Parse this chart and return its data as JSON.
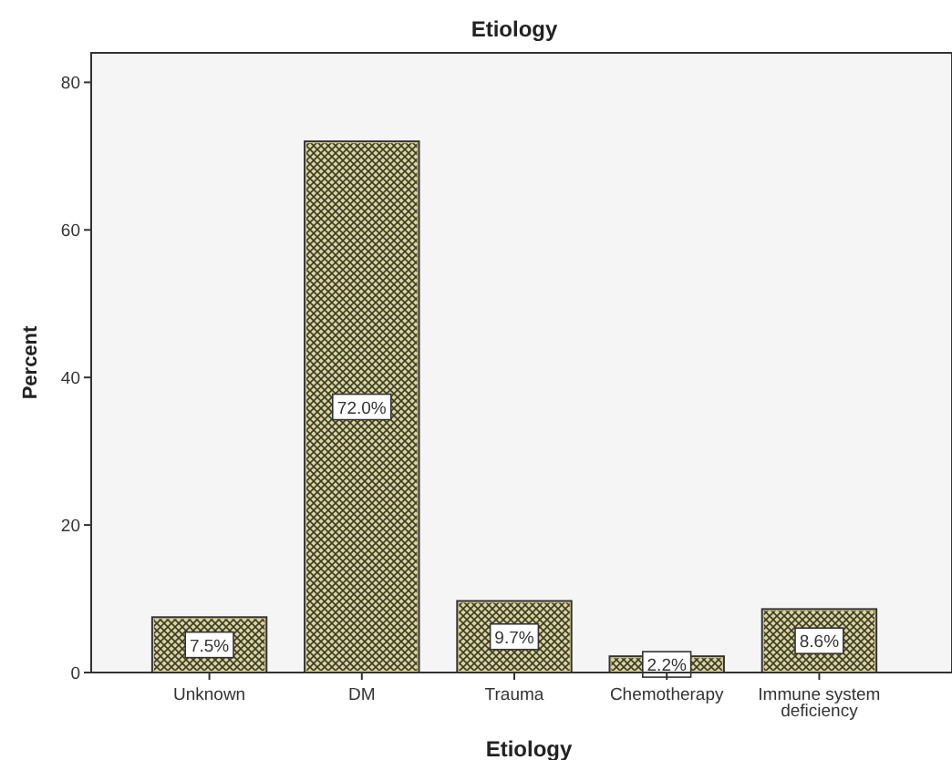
{
  "chart_data": {
    "type": "bar",
    "title": "Etiology",
    "xlabel": "Etiology",
    "ylabel": "Percent",
    "categories": [
      "Unknown",
      "DM",
      "Trauma",
      "Chemotherapy",
      "Immune system deficiency"
    ],
    "values": [
      7.5,
      72.0,
      9.7,
      2.2,
      8.6
    ],
    "value_labels": [
      "7.5%",
      "72.0%",
      "9.7%",
      "2.2%",
      "8.6%"
    ],
    "color": "#d9d49a",
    "ylim": [
      0,
      84
    ],
    "yticks": [
      0,
      20,
      40,
      60,
      80
    ],
    "grid": false
  }
}
